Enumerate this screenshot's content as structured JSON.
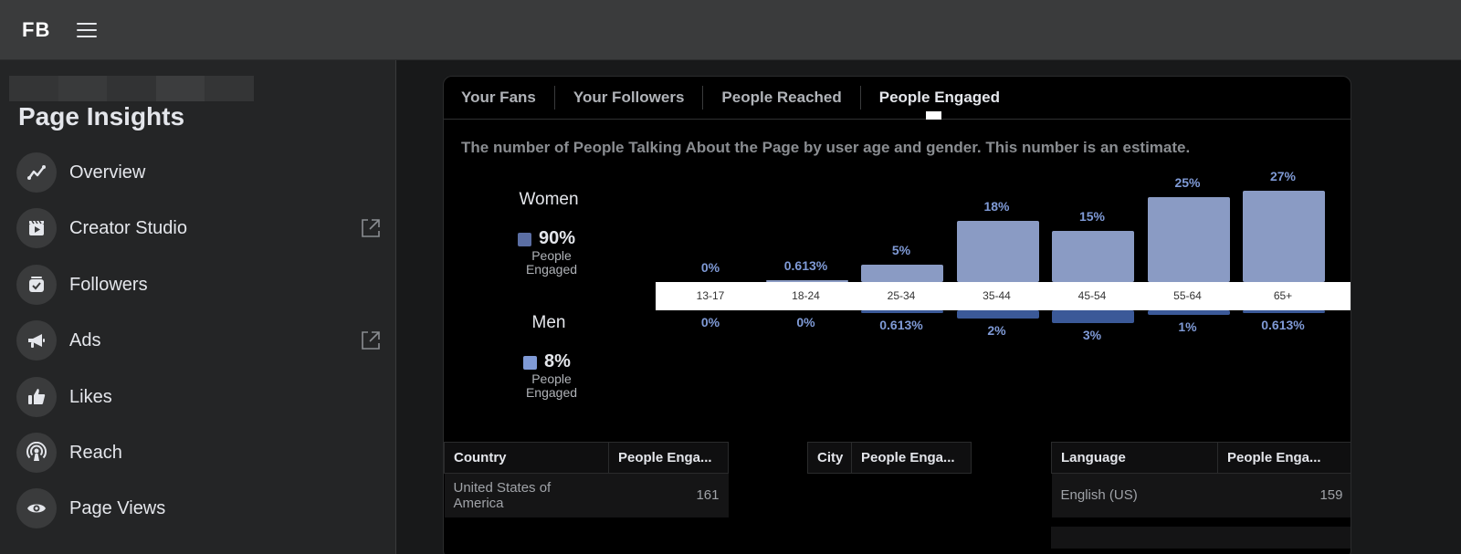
{
  "app": {
    "logo": "FB",
    "menu_icon": "hamburger-icon"
  },
  "sidebar": {
    "title": "Page Insights",
    "items": [
      {
        "label": "Overview",
        "icon": "line-chart-icon",
        "external": false
      },
      {
        "label": "Creator Studio",
        "icon": "clapperboard-icon",
        "external": true
      },
      {
        "label": "Followers",
        "icon": "check-box-icon",
        "external": false
      },
      {
        "label": "Ads",
        "icon": "megaphone-icon",
        "external": true
      },
      {
        "label": "Likes",
        "icon": "thumbs-up-icon",
        "external": false
      },
      {
        "label": "Reach",
        "icon": "broadcast-icon",
        "external": false
      },
      {
        "label": "Page Views",
        "icon": "eye-icon",
        "external": false
      }
    ]
  },
  "tabs": [
    {
      "label": "Your Fans",
      "active": false
    },
    {
      "label": "Your Followers",
      "active": false
    },
    {
      "label": "People Reached",
      "active": false
    },
    {
      "label": "People Engaged",
      "active": true
    }
  ],
  "description": "The number of People Talking About the Page by user age and gender. This number is an estimate.",
  "legend": {
    "women": {
      "title": "Women",
      "percent": "90%",
      "sub": "People Engaged",
      "color": "#5b6ea3"
    },
    "men": {
      "title": "Men",
      "percent": "8%",
      "sub": "People Engaged",
      "color": "#7f9ad6"
    }
  },
  "colors": {
    "women_bar": "#8a9bc4",
    "men_bar": "#3b5998"
  },
  "chart_data": {
    "type": "bar",
    "categories": [
      "13-17",
      "18-24",
      "25-34",
      "35-44",
      "45-54",
      "55-64",
      "65+"
    ],
    "series": [
      {
        "name": "Women",
        "values": [
          0,
          0.613,
          5,
          18,
          15,
          25,
          27
        ],
        "labels": [
          "0%",
          "0.613%",
          "5%",
          "18%",
          "15%",
          "25%",
          "27%"
        ]
      },
      {
        "name": "Men",
        "values": [
          0,
          0,
          0.613,
          2,
          3,
          1,
          0.613
        ],
        "labels": [
          "0%",
          "0%",
          "0.613%",
          "2%",
          "3%",
          "1%",
          "0.613%"
        ]
      }
    ]
  },
  "tables": {
    "country": {
      "headers": [
        "Country",
        "People Enga..."
      ],
      "rows": [
        [
          "United States of America",
          "161"
        ]
      ]
    },
    "city": {
      "headers": [
        "City",
        "People Enga..."
      ],
      "rows": []
    },
    "language": {
      "headers": [
        "Language",
        "People Enga..."
      ],
      "rows": [
        [
          "English (US)",
          "159"
        ]
      ]
    }
  }
}
